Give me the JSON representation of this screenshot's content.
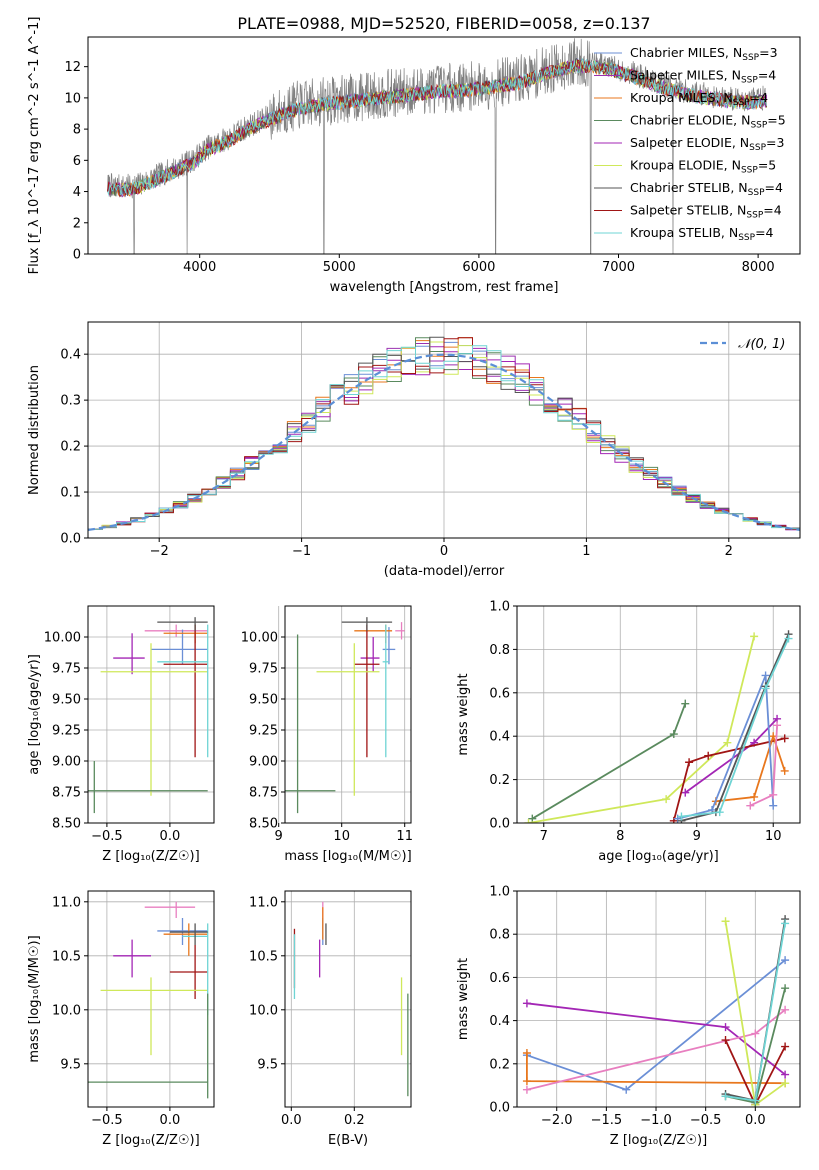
{
  "figure_title": "PLATE=0988, MJD=52520, FIBERID=0058, z=0.137",
  "colors": {
    "Chabrier MILES": "#6b8fd6",
    "Salpeter MILES": "#9b30b0",
    "Kroupa MILES": "#e8771d",
    "Chabrier ELODIE": "#5a8a5e",
    "Salpeter ELODIE": "#a326b5",
    "Kroupa ELODIE": "#cfe85a",
    "Chabrier STELIB": "#555555",
    "Salpeter STELIB": "#a01515",
    "Kroupa STELIB": "#6fd4d4",
    "extra_pink": "#e87fc0",
    "data": "#808080",
    "normal": "#5b8fd6"
  },
  "chart_data": [
    {
      "id": "spectrum",
      "type": "line",
      "xlabel": "wavelength [Angstrom, rest frame]",
      "ylabel": "Flux [f_λ 10^-17 erg cm^-2 s^-1 A^-1]",
      "xlim": [
        3200,
        8300
      ],
      "ylim": [
        0,
        13.9
      ],
      "xticks": [
        4000,
        5000,
        6000,
        7000,
        8000
      ],
      "yticks": [
        0,
        2,
        4,
        6,
        8,
        10,
        12
      ],
      "legend_position": "top-right",
      "legend": [
        {
          "label": "Chabrier MILES, N",
          "sub": "SSP",
          "suffix": "=3",
          "color": "#6b8fd6"
        },
        {
          "label": "Salpeter MILES, N",
          "sub": "SSP",
          "suffix": "=4",
          "color": "#9b30b0"
        },
        {
          "label": "Kroupa MILES, N",
          "sub": "SSP",
          "suffix": "=4",
          "color": "#e8771d"
        },
        {
          "label": "Chabrier ELODIE, N",
          "sub": "SSP",
          "suffix": "=5",
          "color": "#5a8a5e"
        },
        {
          "label": "Salpeter ELODIE, N",
          "sub": "SSP",
          "suffix": "=3",
          "color": "#a326b5"
        },
        {
          "label": "Kroupa ELODIE, N",
          "sub": "SSP",
          "suffix": "=5",
          "color": "#cfe85a"
        },
        {
          "label": "Chabrier STELIB, N",
          "sub": "SSP",
          "suffix": "=4",
          "color": "#555555"
        },
        {
          "label": "Salpeter STELIB, N",
          "sub": "SSP",
          "suffix": "=4",
          "color": "#a01515"
        },
        {
          "label": "Kroupa STELIB, N",
          "sub": "SSP",
          "suffix": "=4",
          "color": "#6fd4d4"
        }
      ],
      "continuum": [
        [
          3340,
          4.4
        ],
        [
          3450,
          4.3
        ],
        [
          3550,
          4.4
        ],
        [
          3700,
          5.0
        ],
        [
          3850,
          5.6
        ],
        [
          3950,
          6.0
        ],
        [
          4050,
          6.8
        ],
        [
          4200,
          7.4
        ],
        [
          4350,
          8.2
        ],
        [
          4500,
          8.8
        ],
        [
          4700,
          9.5
        ],
        [
          4900,
          9.8
        ],
        [
          5100,
          10.0
        ],
        [
          5300,
          10.2
        ],
        [
          5500,
          10.4
        ],
        [
          5700,
          10.6
        ],
        [
          5900,
          10.7
        ],
        [
          6100,
          10.9
        ],
        [
          6300,
          11.2
        ],
        [
          6500,
          11.8
        ],
        [
          6700,
          12.3
        ],
        [
          6900,
          12.1
        ],
        [
          7100,
          11.6
        ],
        [
          7300,
          10.9
        ],
        [
          7500,
          10.4
        ],
        [
          7700,
          10.1
        ],
        [
          7900,
          9.9
        ],
        [
          8060,
          10.0
        ]
      ],
      "drops": [
        [
          3530,
          0
        ],
        [
          3910,
          0
        ],
        [
          4890,
          0
        ],
        [
          6120,
          0
        ],
        [
          6800,
          0
        ],
        [
          7390,
          0
        ]
      ]
    },
    {
      "id": "residuals",
      "type": "histogram",
      "xlabel": "(data-model)/error",
      "ylabel": "Normed distribution",
      "xlim": [
        -2.5,
        2.5
      ],
      "ylim": [
        0,
        0.47
      ],
      "xticks": [
        -2,
        -1,
        0,
        1,
        2
      ],
      "yticks": [
        0.0,
        0.1,
        0.2,
        0.3,
        0.4
      ],
      "grid": true,
      "legend_position": "top-right",
      "normal_label": "𝒩(0, 1)",
      "bin_width": 0.1
    },
    {
      "id": "age_vs_Z",
      "type": "errorbar",
      "xlabel": "Z [log₁₀(Z/Z☉)]",
      "ylabel": "age  [log₁₀(age/yr)]",
      "xlim": [
        -0.65,
        0.35
      ],
      "ylim": [
        8.5,
        10.25
      ],
      "xticks": [
        -0.5,
        0.0
      ],
      "yticks": [
        8.5,
        8.75,
        9.0,
        9.25,
        9.5,
        9.75,
        10.0
      ],
      "grid": true,
      "points": [
        {
          "x": 0.05,
          "y": 10.05,
          "xlo": -0.2,
          "xhi": 0.3,
          "ylo": 10.0,
          "yhi": 10.1,
          "color": "#e87fc0"
        },
        {
          "x": -0.3,
          "y": 9.83,
          "xlo": -0.45,
          "xhi": -0.2,
          "ylo": 9.7,
          "yhi": 10.03,
          "color": "#a326b5"
        },
        {
          "x": 0.1,
          "y": 9.9,
          "xlo": -0.15,
          "xhi": 0.3,
          "ylo": 9.78,
          "yhi": 10.06,
          "color": "#6b8fd6"
        },
        {
          "x": 0.2,
          "y": 10.03,
          "xlo": -0.05,
          "xhi": 0.3,
          "ylo": 9.95,
          "yhi": 10.1,
          "color": "#e8771d"
        },
        {
          "x": 0.2,
          "y": 9.78,
          "xlo": -0.05,
          "xhi": 0.3,
          "ylo": 9.03,
          "yhi": 10.1,
          "color": "#a01515"
        },
        {
          "x": -0.15,
          "y": 9.72,
          "xlo": -0.55,
          "xhi": 0.3,
          "ylo": 8.72,
          "yhi": 9.95,
          "color": "#cfe85a"
        },
        {
          "x": 0.3,
          "y": 9.8,
          "xlo": -0.1,
          "xhi": 0.3,
          "ylo": 9.03,
          "yhi": 10.1,
          "color": "#6fd4d4"
        },
        {
          "x": 0.2,
          "y": 10.12,
          "xlo": -0.1,
          "xhi": 0.3,
          "ylo": 10.05,
          "yhi": 10.16,
          "color": "#555555"
        },
        {
          "x": -0.6,
          "y": 8.76,
          "xlo": -0.65,
          "xhi": 0.3,
          "ylo": 8.58,
          "yhi": 9.0,
          "color": "#5a8a5e"
        }
      ]
    },
    {
      "id": "age_vs_mass",
      "type": "errorbar",
      "xlabel": "mass [log₁₀(M/M☉)]",
      "ylabel": "",
      "xlim": [
        9.1,
        11.1
      ],
      "ylim": [
        8.5,
        10.25
      ],
      "xticks": [
        9,
        10,
        11
      ],
      "yticks": [
        8.5,
        8.75,
        9.0,
        9.25,
        9.5,
        9.75,
        10.0
      ],
      "grid": true,
      "points": [
        {
          "x": 10.95,
          "y": 10.05,
          "xlo": 10.85,
          "xhi": 11.0,
          "ylo": 9.98,
          "yhi": 10.12,
          "color": "#e87fc0"
        },
        {
          "x": 10.5,
          "y": 9.83,
          "xlo": 10.3,
          "xhi": 10.6,
          "ylo": 9.72,
          "yhi": 10.0,
          "color": "#a326b5"
        },
        {
          "x": 10.75,
          "y": 9.9,
          "xlo": 10.65,
          "xhi": 10.85,
          "ylo": 9.78,
          "yhi": 10.08,
          "color": "#6b8fd6"
        },
        {
          "x": 10.7,
          "y": 10.05,
          "xlo": 10.2,
          "xhi": 10.8,
          "ylo": 9.95,
          "yhi": 10.1,
          "color": "#e8771d"
        },
        {
          "x": 10.4,
          "y": 9.78,
          "xlo": 10.2,
          "xhi": 10.6,
          "ylo": 9.03,
          "yhi": 10.1,
          "color": "#a01515"
        },
        {
          "x": 10.2,
          "y": 9.72,
          "xlo": 9.6,
          "xhi": 10.6,
          "ylo": 8.72,
          "yhi": 9.95,
          "color": "#cfe85a"
        },
        {
          "x": 10.7,
          "y": 9.8,
          "xlo": 10.65,
          "xhi": 10.75,
          "ylo": 9.03,
          "yhi": 10.1,
          "color": "#6fd4d4"
        },
        {
          "x": 10.4,
          "y": 10.12,
          "xlo": 10.0,
          "xhi": 10.8,
          "ylo": 10.05,
          "yhi": 10.16,
          "color": "#555555"
        },
        {
          "x": 9.3,
          "y": 8.76,
          "xlo": 9.1,
          "xhi": 9.9,
          "ylo": 8.58,
          "yhi": 10.02,
          "color": "#5a8a5e"
        }
      ]
    },
    {
      "id": "weight_vs_age",
      "type": "line",
      "xlabel": "age  [log₁₀(age/yr)]",
      "ylabel": "mass weight",
      "xlim": [
        6.65,
        10.35
      ],
      "ylim": [
        0,
        1.0
      ],
      "xticks": [
        7,
        8,
        9,
        10
      ],
      "yticks": [
        0.0,
        0.2,
        0.4,
        0.6,
        0.8,
        1.0
      ],
      "grid": true,
      "series": [
        {
          "color": "#5a8a5e",
          "x": [
            6.85,
            8.7,
            8.85
          ],
          "y": [
            0.02,
            0.41,
            0.55
          ]
        },
        {
          "color": "#cfe85a",
          "x": [
            6.8,
            8.6,
            9.4,
            9.75
          ],
          "y": [
            0.0,
            0.11,
            0.37,
            0.86
          ]
        },
        {
          "color": "#a326b5",
          "x": [
            8.85,
            9.75,
            10.05
          ],
          "y": [
            0.14,
            0.37,
            0.48
          ]
        },
        {
          "color": "#a01515",
          "x": [
            8.7,
            8.9,
            9.15,
            10.15
          ],
          "y": [
            0.01,
            0.28,
            0.31,
            0.39
          ]
        },
        {
          "color": "#e8771d",
          "x": [
            9.25,
            9.75,
            10.0,
            10.15
          ],
          "y": [
            0.1,
            0.12,
            0.4,
            0.24
          ]
        },
        {
          "color": "#6b8fd6",
          "x": [
            8.75,
            9.2,
            9.9,
            10.0
          ],
          "y": [
            0.02,
            0.06,
            0.68,
            0.08
          ]
        },
        {
          "color": "#555555",
          "x": [
            8.8,
            9.25,
            9.9,
            10.2
          ],
          "y": [
            0.01,
            0.05,
            0.63,
            0.87
          ]
        },
        {
          "color": "#6fd4d4",
          "x": [
            8.8,
            9.3,
            9.9,
            10.2
          ],
          "y": [
            0.03,
            0.05,
            0.62,
            0.85
          ]
        },
        {
          "color": "#e87fc0",
          "x": [
            9.7,
            10.0,
            10.05
          ],
          "y": [
            0.08,
            0.13,
            0.45
          ]
        }
      ]
    },
    {
      "id": "mass_vs_Z",
      "type": "errorbar",
      "xlabel": "Z [log₁₀(Z/Z☉)]",
      "ylabel": "mass [log₁₀(M/M☉)]",
      "xlim": [
        -0.65,
        0.35
      ],
      "ylim": [
        9.1,
        11.1
      ],
      "xticks": [
        -0.5,
        0.0
      ],
      "yticks": [
        9.5,
        10.0,
        10.5,
        11.0
      ],
      "grid": true,
      "points": [
        {
          "x": 0.05,
          "y": 10.95,
          "xlo": -0.2,
          "xhi": 0.2,
          "ylo": 10.85,
          "yhi": 11.0,
          "color": "#e87fc0"
        },
        {
          "x": -0.3,
          "y": 10.5,
          "xlo": -0.45,
          "xhi": -0.15,
          "ylo": 10.3,
          "yhi": 10.65,
          "color": "#a326b5"
        },
        {
          "x": 0.1,
          "y": 10.73,
          "xlo": -0.1,
          "xhi": 0.3,
          "ylo": 10.6,
          "yhi": 10.85,
          "color": "#6b8fd6"
        },
        {
          "x": 0.15,
          "y": 10.7,
          "xlo": -0.05,
          "xhi": 0.3,
          "ylo": 10.5,
          "yhi": 10.8,
          "color": "#e8771d"
        },
        {
          "x": 0.2,
          "y": 10.35,
          "xlo": 0.0,
          "xhi": 0.3,
          "ylo": 10.1,
          "yhi": 10.6,
          "color": "#a01515"
        },
        {
          "x": -0.15,
          "y": 10.18,
          "xlo": -0.55,
          "xhi": 0.3,
          "ylo": 9.58,
          "yhi": 10.3,
          "color": "#cfe85a"
        },
        {
          "x": 0.3,
          "y": 10.68,
          "xlo": 0.1,
          "xhi": 0.3,
          "ylo": 9.95,
          "yhi": 10.8,
          "color": "#6fd4d4"
        },
        {
          "x": 0.2,
          "y": 10.72,
          "xlo": 0.0,
          "xhi": 0.3,
          "ylo": 10.6,
          "yhi": 10.8,
          "color": "#555555"
        },
        {
          "x": 0.3,
          "y": 9.33,
          "xlo": -0.65,
          "xhi": 0.3,
          "ylo": 9.18,
          "yhi": 10.15,
          "color": "#5a8a5e"
        }
      ]
    },
    {
      "id": "mass_vs_EBV",
      "type": "errorbar",
      "xlabel": "E(B-V)",
      "ylabel": "",
      "xlim": [
        -0.02,
        0.38
      ],
      "ylim": [
        9.1,
        11.1
      ],
      "xticks": [
        0.0,
        0.2
      ],
      "yticks": [
        9.5,
        10.0,
        10.5,
        11.0
      ],
      "grid": true,
      "points": [
        {
          "x": 0.1,
          "y": 10.9,
          "xlo": 0.1,
          "xhi": 0.1,
          "ylo": 10.75,
          "yhi": 11.0,
          "color": "#e87fc0"
        },
        {
          "x": 0.09,
          "y": 10.5,
          "xlo": 0.09,
          "xhi": 0.09,
          "ylo": 10.3,
          "yhi": 10.65,
          "color": "#a326b5"
        },
        {
          "x": 0.1,
          "y": 10.7,
          "xlo": 0.1,
          "xhi": 0.1,
          "ylo": 10.6,
          "yhi": 10.85,
          "color": "#6b8fd6"
        },
        {
          "x": 0.1,
          "y": 10.8,
          "xlo": 0.1,
          "xhi": 0.1,
          "ylo": 10.65,
          "yhi": 10.95,
          "color": "#e8771d"
        },
        {
          "x": 0.01,
          "y": 10.5,
          "xlo": 0.01,
          "xhi": 0.01,
          "ylo": 10.2,
          "yhi": 10.75,
          "color": "#a01515"
        },
        {
          "x": 0.35,
          "y": 10.0,
          "xlo": 0.35,
          "xhi": 0.35,
          "ylo": 9.58,
          "yhi": 10.3,
          "color": "#cfe85a"
        },
        {
          "x": 0.01,
          "y": 10.4,
          "xlo": 0.01,
          "xhi": 0.01,
          "ylo": 10.1,
          "yhi": 10.7,
          "color": "#6fd4d4"
        },
        {
          "x": 0.11,
          "y": 10.7,
          "xlo": 0.11,
          "xhi": 0.11,
          "ylo": 10.6,
          "yhi": 10.8,
          "color": "#555555"
        },
        {
          "x": 0.37,
          "y": 9.6,
          "xlo": 0.37,
          "xhi": 0.37,
          "ylo": 9.2,
          "yhi": 10.15,
          "color": "#5a8a5e"
        }
      ]
    },
    {
      "id": "weight_vs_Z",
      "type": "line",
      "xlabel": "Z [log₁₀(Z/Z☉)]",
      "ylabel": "mass weight",
      "xlim": [
        -2.4,
        0.45
      ],
      "ylim": [
        0,
        1.0
      ],
      "xticks": [
        -2.0,
        -1.5,
        -1.0,
        -0.5,
        0.0
      ],
      "yticks": [
        0.0,
        0.2,
        0.4,
        0.6,
        0.8,
        1.0
      ],
      "grid": true,
      "series": [
        {
          "color": "#6b8fd6",
          "x": [
            -2.3,
            -1.3,
            0.3
          ],
          "y": [
            0.24,
            0.08,
            0.68
          ]
        },
        {
          "color": "#a326b5",
          "x": [
            -2.3,
            -0.3,
            0.3
          ],
          "y": [
            0.48,
            0.37,
            0.15
          ]
        },
        {
          "color": "#e8771d",
          "x": [
            -2.3,
            -2.3,
            0.3
          ],
          "y": [
            0.25,
            0.12,
            0.11
          ]
        },
        {
          "color": "#e87fc0",
          "x": [
            -2.3,
            0.0,
            0.3
          ],
          "y": [
            0.08,
            0.34,
            0.45
          ]
        },
        {
          "color": "#a01515",
          "x": [
            -0.3,
            0.0,
            0.3
          ],
          "y": [
            0.31,
            0.01,
            0.28
          ]
        },
        {
          "color": "#cfe85a",
          "x": [
            -0.3,
            0.0,
            0.3
          ],
          "y": [
            0.86,
            0.01,
            0.11
          ]
        },
        {
          "color": "#5a8a5e",
          "x": [
            -0.3,
            0.0,
            0.3
          ],
          "y": [
            0.05,
            0.02,
            0.55
          ]
        },
        {
          "color": "#555555",
          "x": [
            -0.3,
            0.0,
            0.3
          ],
          "y": [
            0.06,
            0.03,
            0.87
          ]
        },
        {
          "color": "#6fd4d4",
          "x": [
            -0.3,
            0.0,
            0.3
          ],
          "y": [
            0.05,
            0.03,
            0.85
          ]
        }
      ]
    }
  ]
}
